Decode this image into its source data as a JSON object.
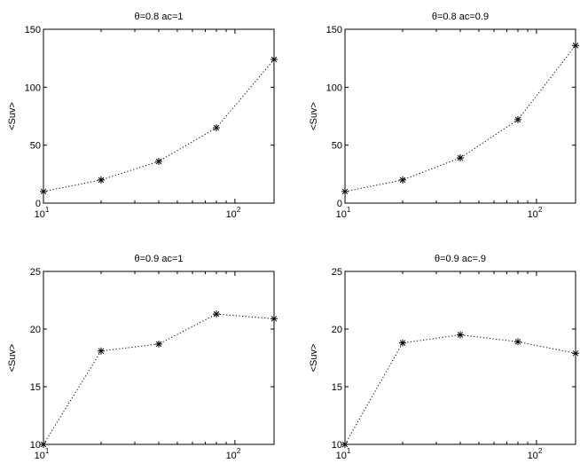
{
  "chart_data": [
    {
      "type": "line",
      "title": "θ=0.8 ac=1",
      "ylabel": "<Suv>",
      "xscale": "log",
      "xlim": [
        10,
        160
      ],
      "ylim": [
        0,
        150
      ],
      "yticks": [
        0,
        50,
        100,
        150
      ],
      "xtick_labels": [
        {
          "base": "10",
          "exp": "1"
        },
        {
          "base": "10",
          "exp": "2"
        }
      ],
      "x": [
        10,
        20,
        40,
        80,
        160
      ],
      "series": [
        {
          "values": [
            10,
            20,
            36,
            65,
            124
          ],
          "marker": "asterisk",
          "linestyle": "dotted"
        }
      ]
    },
    {
      "type": "line",
      "title": "θ=0.8 ac=0.9",
      "ylabel": "<Suv>",
      "xscale": "log",
      "xlim": [
        10,
        160
      ],
      "ylim": [
        0,
        150
      ],
      "yticks": [
        0,
        50,
        100,
        150
      ],
      "xtick_labels": [
        {
          "base": "10",
          "exp": "1"
        },
        {
          "base": "10",
          "exp": "2"
        }
      ],
      "x": [
        10,
        20,
        40,
        80,
        160
      ],
      "series": [
        {
          "values": [
            10,
            20,
            39,
            72,
            136
          ],
          "marker": "asterisk",
          "linestyle": "dotted"
        }
      ]
    },
    {
      "type": "line",
      "title": "θ=0.9 ac=1",
      "ylabel": "<Suv>",
      "xscale": "log",
      "xlim": [
        10,
        160
      ],
      "ylim": [
        10,
        25
      ],
      "yticks": [
        10,
        15,
        20,
        25
      ],
      "xtick_labels": [
        {
          "base": "10",
          "exp": "1"
        },
        {
          "base": "10",
          "exp": "2"
        }
      ],
      "x": [
        10,
        20,
        40,
        80,
        160
      ],
      "series": [
        {
          "values": [
            10.0,
            18.1,
            18.7,
            21.3,
            20.9
          ],
          "marker": "asterisk",
          "linestyle": "dotted"
        }
      ]
    },
    {
      "type": "line",
      "title": "θ=0.9 ac=.9",
      "ylabel": "<Suv>",
      "xscale": "log",
      "xlim": [
        10,
        160
      ],
      "ylim": [
        10,
        25
      ],
      "yticks": [
        10,
        15,
        20,
        25
      ],
      "xtick_labels": [
        {
          "base": "10",
          "exp": "1"
        },
        {
          "base": "10",
          "exp": "2"
        }
      ],
      "x": [
        10,
        20,
        40,
        80,
        160
      ],
      "series": [
        {
          "values": [
            10.0,
            18.8,
            19.5,
            18.9,
            17.9
          ],
          "marker": "asterisk",
          "linestyle": "dotted"
        }
      ]
    }
  ]
}
